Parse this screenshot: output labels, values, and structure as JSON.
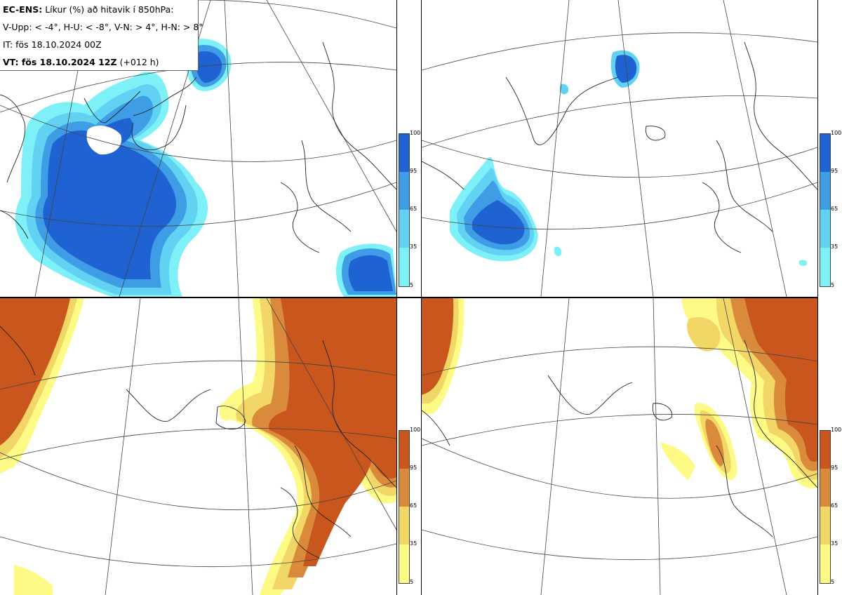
{
  "info": {
    "model": "EC-ENS:",
    "title": "Líkur (%) að hitavik í 850hPa:",
    "thresholds": "V-Upp: < -4°, H-U: < -8°, V-N: > 4°, H-N: > 8°",
    "init_time": "IT: fös 18.10.2024 00Z",
    "valid_prefix": "VT: fös 18.10.2024 12Z",
    "lead": "(+012 h)"
  },
  "colors": {
    "cold_levels": [
      "#7ef0f8",
      "#62d2f2",
      "#3f9de6",
      "#1f63d2"
    ],
    "warm_levels": [
      "#fdfb86",
      "#f2d766",
      "#d98a3a",
      "#c9561c"
    ],
    "land_outline": "#222222",
    "grid_line": "#444444"
  },
  "legend": {
    "ticks": [
      "100",
      "95",
      "65",
      "35",
      "5"
    ]
  },
  "panels": [
    {
      "name": "panel-top-left",
      "variable": "V-Upp"
    },
    {
      "name": "panel-top-right",
      "variable": "H-U"
    },
    {
      "name": "panel-bottom-left",
      "variable": "V-N"
    },
    {
      "name": "panel-bottom-right",
      "variable": "H-N"
    }
  ]
}
